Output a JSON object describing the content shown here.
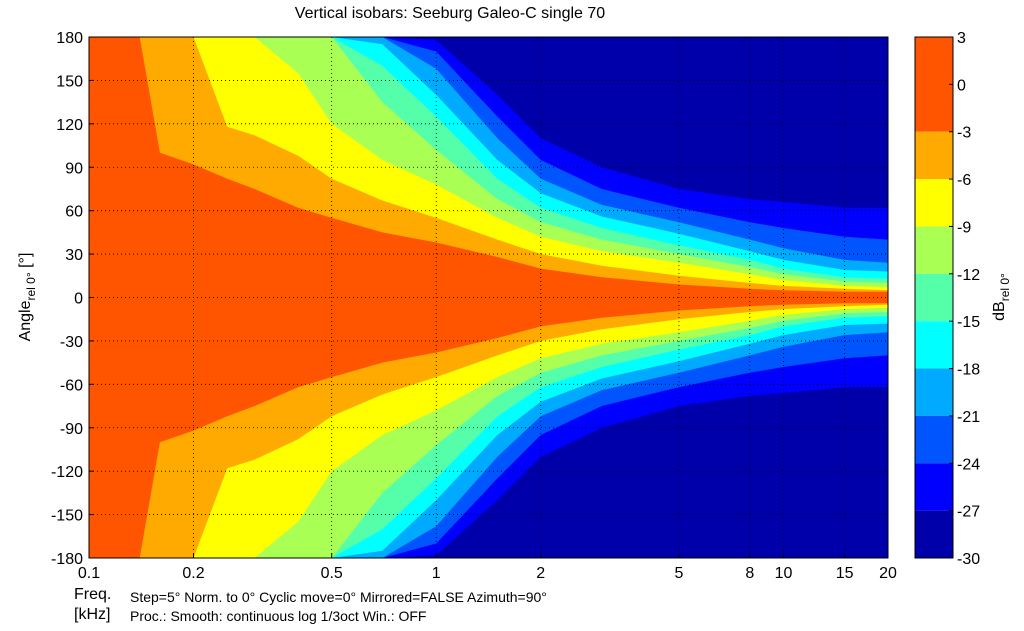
{
  "chart_data": {
    "type": "heatmap",
    "title": "Vertical isobars: Seeburg  Galeo-C  single 70",
    "xlabel": "Freq.",
    "xlabel_unit": "[kHz]",
    "x_scale": "log",
    "xlim": [
      0.1,
      20
    ],
    "x_ticks": [
      0.1,
      0.2,
      0.5,
      1,
      2,
      5,
      8,
      10,
      15,
      20
    ],
    "x_tick_labels": [
      "0.1",
      "0.2",
      "0.5",
      "1",
      "2",
      "5",
      "8",
      "10",
      "15",
      "20"
    ],
    "ylabel": "Angle",
    "ylabel_sub": "rel 0°",
    "ylabel_unit": " [°]",
    "ylim": [
      -180,
      180
    ],
    "y_ticks": [
      180,
      150,
      120,
      90,
      60,
      30,
      0,
      -30,
      -60,
      -90,
      -120,
      -150,
      -180
    ],
    "grid": true,
    "colorbar": {
      "label": "dB",
      "label_sub": "rel 0°",
      "tick_labels": [
        "3",
        "0",
        "-3",
        "-6",
        "-9",
        "-12",
        "-15",
        "-18",
        "-21",
        "-24",
        "-27",
        "-30"
      ],
      "bands": [
        {
          "range": [
            -3,
            3
          ],
          "color": "#ff5500"
        },
        {
          "range": [
            -6,
            -3
          ],
          "color": "#ffaa00"
        },
        {
          "range": [
            -9,
            -6
          ],
          "color": "#ffff00"
        },
        {
          "range": [
            -12,
            -9
          ],
          "color": "#aaff55"
        },
        {
          "range": [
            -15,
            -12
          ],
          "color": "#55ffaa"
        },
        {
          "range": [
            -18,
            -15
          ],
          "color": "#00ffff"
        },
        {
          "range": [
            -21,
            -18
          ],
          "color": "#00aaff"
        },
        {
          "range": [
            -24,
            -21
          ],
          "color": "#0055ff"
        },
        {
          "range": [
            -27,
            -24
          ],
          "color": "#0000ff"
        },
        {
          "range": [
            -30,
            -27
          ],
          "color": "#0000aa"
        }
      ]
    },
    "contours_half_angle_deg": {
      "frequency_khz": [
        0.1,
        0.13,
        0.14,
        0.16,
        0.2,
        0.25,
        0.3,
        0.4,
        0.5,
        0.7,
        1,
        1.5,
        2,
        3,
        5,
        8,
        10,
        15,
        20
      ],
      "minus3_dB": [
        180,
        180,
        180,
        100,
        92,
        82,
        75,
        62,
        55,
        45,
        38,
        28,
        20,
        14,
        9,
        6,
        5,
        4,
        4
      ],
      "minus6_dB": [
        180,
        180,
        180,
        180,
        180,
        118,
        112,
        98,
        82,
        67,
        55,
        40,
        30,
        22,
        15,
        10,
        8,
        6,
        5
      ],
      "minus9_dB": [
        180,
        180,
        180,
        180,
        180,
        180,
        180,
        155,
        120,
        95,
        78,
        55,
        42,
        32,
        24,
        16,
        12,
        8,
        7
      ],
      "minus12_dB": [
        180,
        180,
        180,
        180,
        180,
        180,
        180,
        180,
        180,
        135,
        102,
        68,
        52,
        40,
        30,
        21,
        16,
        11,
        10
      ],
      "minus15_dB": [
        180,
        180,
        180,
        180,
        180,
        180,
        180,
        180,
        180,
        160,
        125,
        82,
        62,
        48,
        36,
        26,
        20,
        14,
        13
      ],
      "minus18_dB": [
        180,
        180,
        180,
        180,
        180,
        180,
        180,
        180,
        180,
        175,
        140,
        95,
        72,
        56,
        44,
        32,
        26,
        19,
        18
      ],
      "minus21_dB": [
        180,
        180,
        180,
        180,
        180,
        180,
        180,
        180,
        180,
        180,
        158,
        110,
        82,
        64,
        52,
        40,
        34,
        26,
        24
      ],
      "minus24_dB": [
        180,
        180,
        180,
        180,
        180,
        180,
        180,
        180,
        180,
        180,
        170,
        125,
        95,
        75,
        62,
        52,
        48,
        42,
        40
      ],
      "minus27_dB": [
        180,
        180,
        180,
        180,
        180,
        180,
        180,
        180,
        180,
        180,
        178,
        140,
        110,
        90,
        75,
        68,
        66,
        62,
        62
      ]
    }
  },
  "footer": {
    "freq_label": "Freq.",
    "unit_label": "[kHz]",
    "line1": "Step=5°    Norm. to 0°    Cyclic move=0°    Mirrored=FALSE    Azimuth=90°",
    "line2": "Proc.: Smooth: continuous log 1/3oct    Win.: OFF"
  }
}
